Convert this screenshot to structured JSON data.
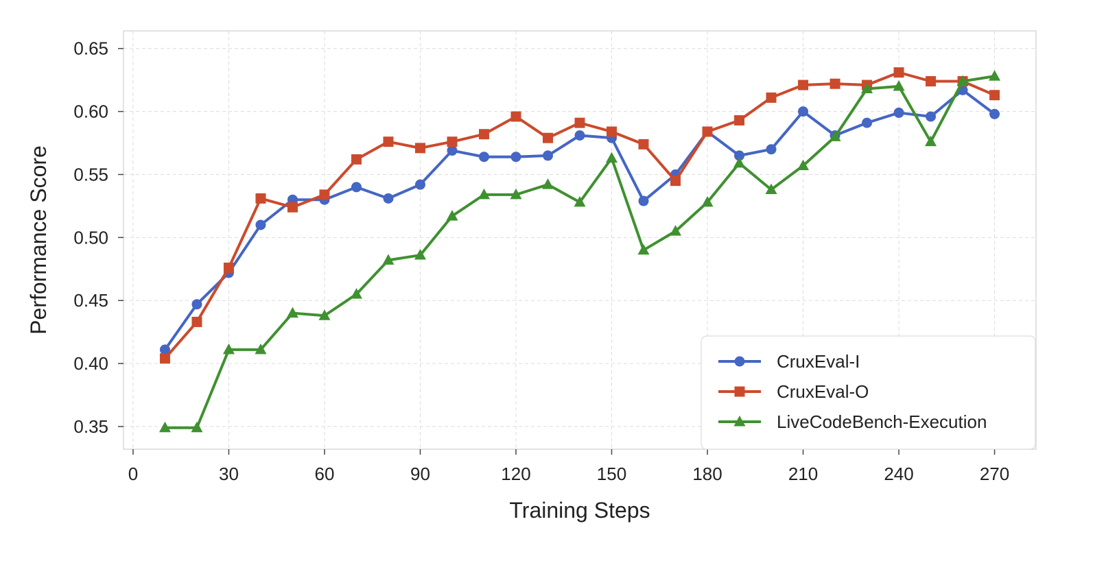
{
  "chart_data": {
    "type": "line",
    "title": "",
    "xlabel": "Training Steps",
    "ylabel": "Performance Score",
    "x": [
      10,
      20,
      30,
      40,
      50,
      60,
      70,
      80,
      90,
      100,
      110,
      120,
      130,
      140,
      150,
      160,
      170,
      180,
      190,
      200,
      210,
      220,
      230,
      240,
      250,
      260,
      270
    ],
    "xlim": [
      -3,
      283
    ],
    "ylim": [
      0.332,
      0.664
    ],
    "xticks": [
      "0",
      "30",
      "60",
      "90",
      "120",
      "150",
      "180",
      "210",
      "240",
      "270"
    ],
    "yticks": [
      "0.35",
      "0.40",
      "0.45",
      "0.50",
      "0.55",
      "0.60",
      "0.65"
    ],
    "grid": true,
    "legend_position": "bottom-right",
    "series": [
      {
        "name": "CruxEval-I",
        "color": "#4466c4",
        "marker": "circle",
        "values": [
          0.411,
          0.447,
          0.472,
          0.51,
          0.53,
          0.53,
          0.54,
          0.531,
          0.542,
          0.569,
          0.564,
          0.564,
          0.565,
          0.581,
          0.579,
          0.529,
          0.55,
          0.584,
          0.565,
          0.57,
          0.6,
          0.581,
          0.591,
          0.599,
          0.596,
          0.617,
          0.598
        ]
      },
      {
        "name": "CruxEval-O",
        "color": "#cc4a2c",
        "marker": "square",
        "values": [
          0.404,
          0.433,
          0.476,
          0.531,
          0.524,
          0.534,
          0.562,
          0.576,
          0.571,
          0.576,
          0.582,
          0.596,
          0.579,
          0.591,
          0.584,
          0.574,
          0.545,
          0.584,
          0.593,
          0.611,
          0.621,
          0.622,
          0.621,
          0.631,
          0.624,
          0.624,
          0.613
        ]
      },
      {
        "name": "LiveCodeBench-Execution",
        "color": "#3f9130",
        "marker": "triangle",
        "values": [
          0.349,
          0.349,
          0.411,
          0.411,
          0.44,
          0.438,
          0.455,
          0.482,
          0.486,
          0.517,
          0.534,
          0.534,
          0.542,
          0.528,
          0.563,
          0.49,
          0.505,
          0.528,
          0.559,
          0.538,
          0.557,
          0.58,
          0.618,
          0.62,
          0.576,
          0.624,
          0.628
        ]
      }
    ]
  }
}
